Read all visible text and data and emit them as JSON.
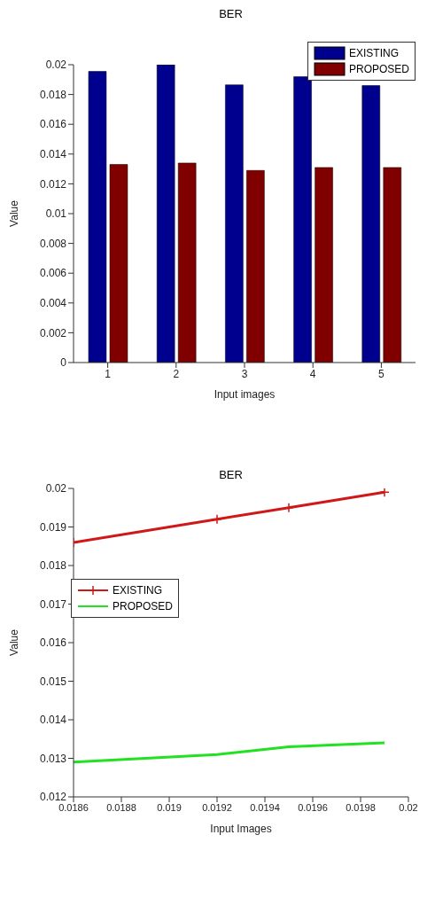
{
  "chart_data": [
    {
      "type": "bar",
      "title": "BER",
      "xlabel": "Input images",
      "ylabel": "Value",
      "categories": [
        "1",
        "2",
        "3",
        "4",
        "5"
      ],
      "series": [
        {
          "name": "EXISTING",
          "color": "#00008f",
          "values": [
            0.01955,
            0.02,
            0.01865,
            0.0192,
            0.0186
          ]
        },
        {
          "name": "PROPOSED",
          "color": "#800000",
          "values": [
            0.0133,
            0.0134,
            0.0129,
            0.0131,
            0.0131
          ]
        }
      ],
      "ylim": [
        0,
        0.02
      ],
      "yticks": [
        0,
        0.002,
        0.004,
        0.006,
        0.008,
        0.01,
        0.012,
        0.014,
        0.016,
        0.018,
        0.02
      ],
      "legend": "top right"
    },
    {
      "type": "line",
      "title": "BER",
      "xlabel": "Input Images",
      "ylabel": "Value",
      "x": [
        0.0186,
        0.0192,
        0.0195,
        0.0199
      ],
      "series": [
        {
          "name": "EXISTING",
          "color": "#d01818",
          "values": [
            0.0186,
            0.0192,
            0.0195,
            0.0199
          ],
          "marker": "cross"
        },
        {
          "name": "PROPOSED",
          "color": "#22e022",
          "values": [
            0.0129,
            0.0131,
            0.0133,
            0.0134
          ],
          "marker": "none"
        }
      ],
      "xlim": [
        0.0186,
        0.02
      ],
      "xticks": [
        0.0186,
        0.0188,
        0.019,
        0.0192,
        0.0194,
        0.0196,
        0.0198,
        0.02
      ],
      "ylim": [
        0.012,
        0.02
      ],
      "yticks": [
        0.012,
        0.013,
        0.014,
        0.015,
        0.016,
        0.017,
        0.018,
        0.019,
        0.02
      ],
      "legend": "top left"
    }
  ]
}
